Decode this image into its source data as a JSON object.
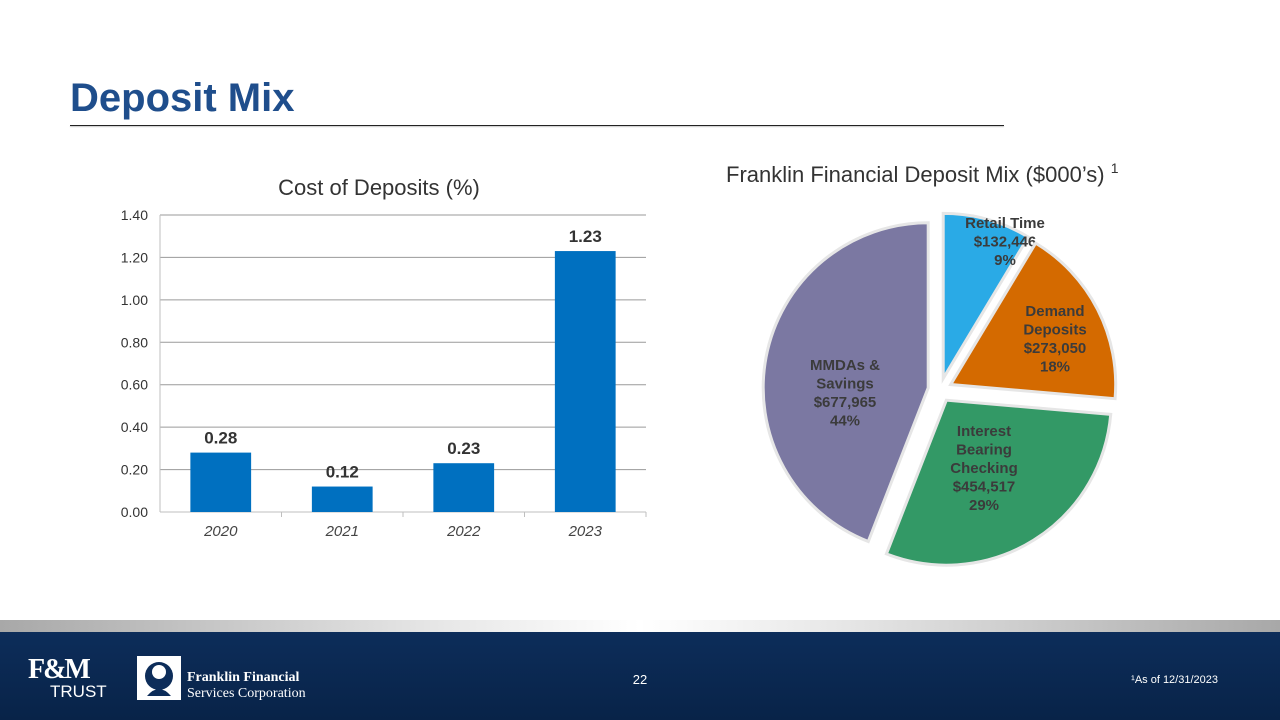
{
  "slide": {
    "title": "Deposit Mix"
  },
  "chart_data": [
    {
      "type": "bar",
      "title": "Cost of Deposits (%)",
      "categories": [
        "2020",
        "2021",
        "2022",
        "2023"
      ],
      "values": [
        0.28,
        0.12,
        0.23,
        1.23
      ],
      "data_labels": [
        "0.28",
        "0.12",
        "0.23",
        "1.23"
      ],
      "ylim": [
        0,
        1.4
      ],
      "yticks": [
        "0.00",
        "0.20",
        "0.40",
        "0.60",
        "0.80",
        "1.00",
        "1.20",
        "1.40"
      ],
      "grid": true,
      "bar_color": "#0070c0"
    },
    {
      "type": "pie",
      "title": "Franklin Financial Deposit Mix ($000’s)",
      "title_superscript": "1",
      "exploded": true,
      "slices": [
        {
          "name": "Retail Time",
          "value": 132446,
          "value_label": "$132,446",
          "percent_label": "9%",
          "color": "#2aaae6"
        },
        {
          "name": "Demand Deposits",
          "value": 273050,
          "value_label": "$273,050",
          "percent_label": "18%",
          "color": "#d46a00"
        },
        {
          "name": "Interest Bearing Checking",
          "value": 454517,
          "value_label": "$454,517",
          "percent_label": "29%",
          "color": "#339966"
        },
        {
          "name": "MMDAs & Savings",
          "value": 677965,
          "value_label": "$677,965",
          "percent_label": "44%",
          "color": "#7b78a2"
        }
      ]
    }
  ],
  "footer": {
    "logo_fm": "F&M",
    "logo_trust": "TRUST",
    "ff_line1": "Franklin Financial",
    "ff_line2": "Services Corporation",
    "page_number": "22",
    "footnote": "¹As of 12/31/2023"
  },
  "colors": {
    "title": "#1f4e8c",
    "footer_bg": "#0d2d5a"
  }
}
